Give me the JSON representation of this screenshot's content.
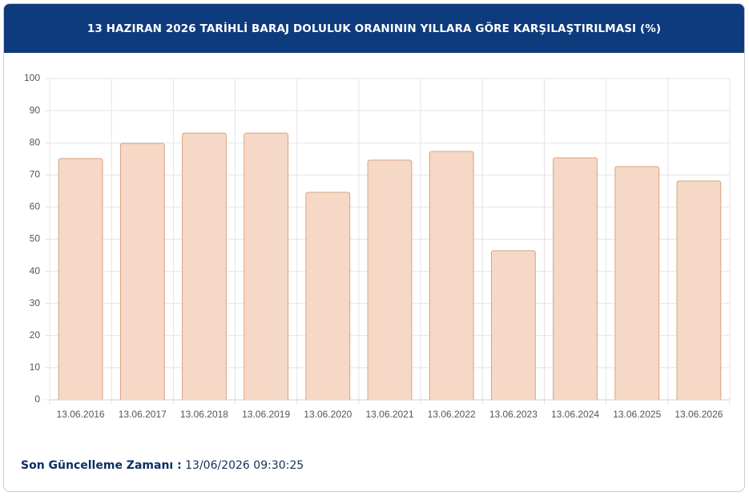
{
  "header": {
    "title": "13 HAZIRAN 2026 TARİHLİ BARAJ DOLULUK ORANININ YILLARA GÖRE KARŞILAŞTIRILMASI (%)"
  },
  "chart_data": {
    "type": "bar",
    "categories": [
      "13.06.2016",
      "13.06.2017",
      "13.06.2018",
      "13.06.2019",
      "13.06.2020",
      "13.06.2021",
      "13.06.2022",
      "13.06.2023",
      "13.06.2024",
      "13.06.2025",
      "13.06.2026"
    ],
    "values": [
      75.1,
      79.8,
      83.0,
      83.0,
      64.6,
      74.6,
      77.3,
      46.4,
      75.3,
      72.6,
      68.1
    ],
    "color": "#f5d9c6",
    "edge_color": "#d9a27f",
    "ylim": [
      0,
      100
    ],
    "yticks": [
      0,
      10,
      20,
      30,
      40,
      50,
      60,
      70,
      80,
      90,
      100
    ],
    "grid": true
  },
  "footer": {
    "label": "Son Güncelleme Zamanı :",
    "value": "13/06/2026 09:30:25"
  }
}
